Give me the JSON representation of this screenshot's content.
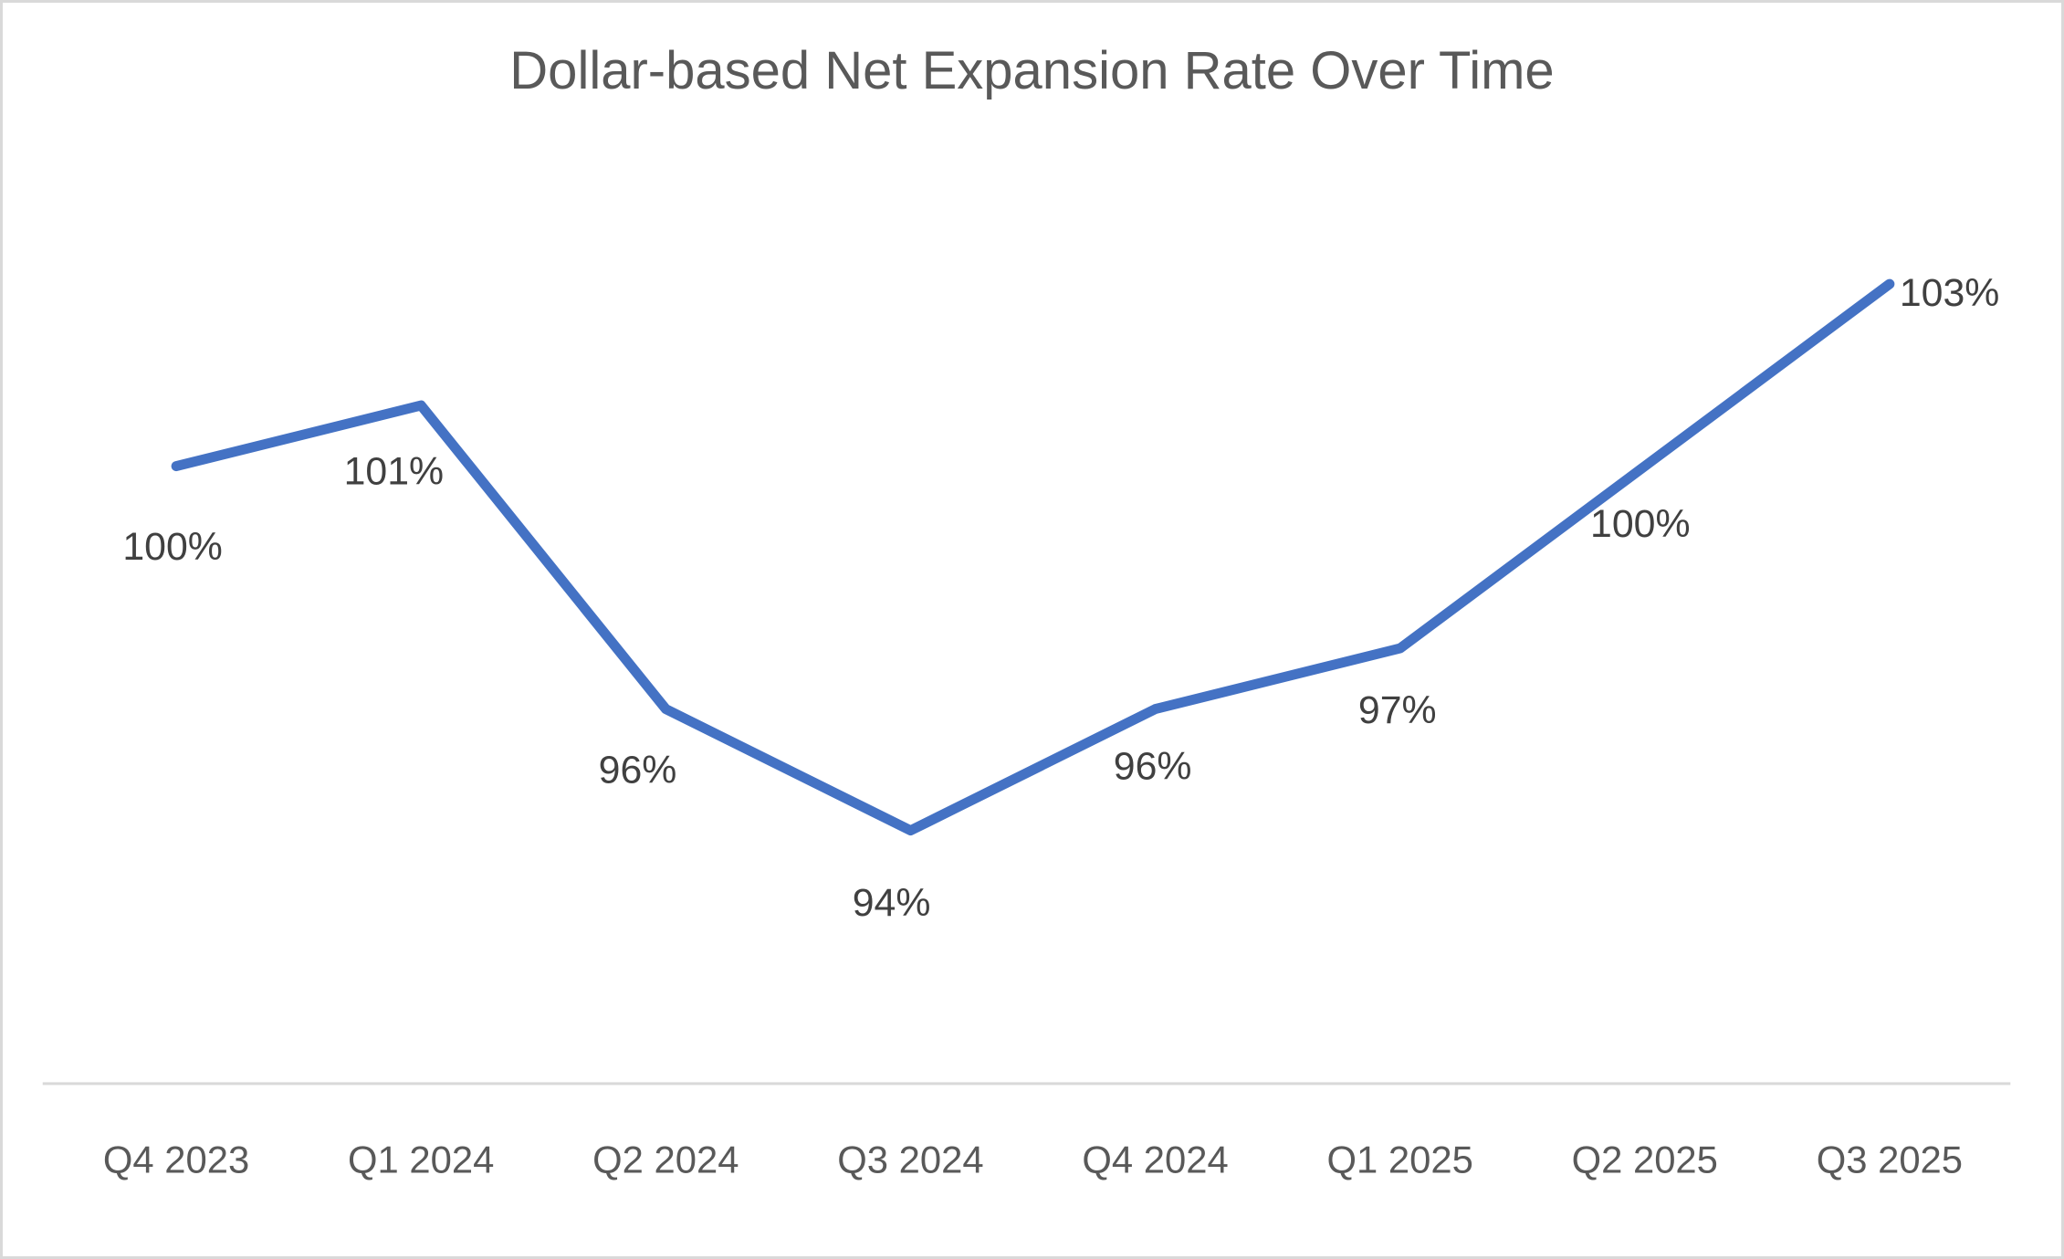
{
  "chart_data": {
    "type": "line",
    "title": "Dollar-based Net Expansion Rate Over Time",
    "categories": [
      "Q4 2023",
      "Q1 2024",
      "Q2 2024",
      "Q3 2024",
      "Q4 2024",
      "Q1 2025",
      "Q2 2025",
      "Q3 2025"
    ],
    "values": [
      100,
      101,
      96,
      94,
      96,
      97,
      100,
      103
    ],
    "data_labels": [
      "100%",
      "101%",
      "96%",
      "94%",
      "96%",
      "97%",
      "100%",
      "103%"
    ],
    "unit": "%",
    "xlabel": "",
    "ylabel": "",
    "y_axis_visible": false,
    "grid": false,
    "legend": "none",
    "colors": {
      "line": "#4472C4",
      "axis_line": "#D9D9D9",
      "title_text": "#595959",
      "tick_text": "#595959",
      "data_label_text": "#404040",
      "background": "#FFFFFF",
      "frame_border": "#D9D9D9"
    }
  }
}
